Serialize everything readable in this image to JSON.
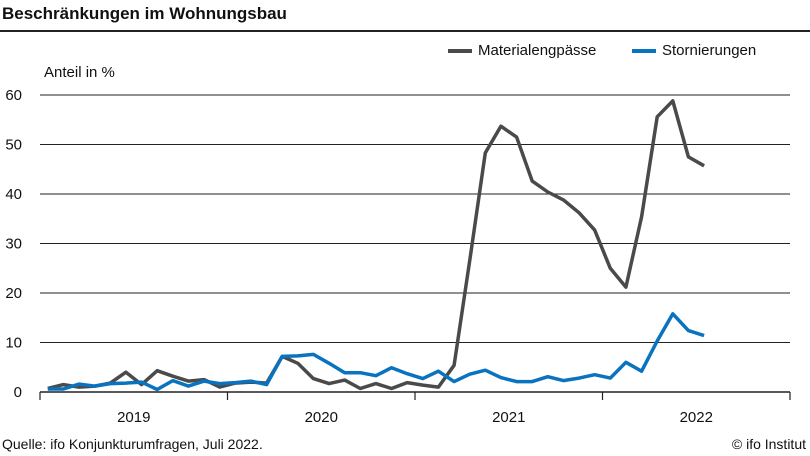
{
  "chart_data": {
    "type": "line",
    "title": "Beschränkungen im Wohnungsbau",
    "ylabel": "Anteil in %",
    "xlabel": "",
    "ylim": [
      0,
      60
    ],
    "yticks": [
      0,
      10,
      20,
      30,
      40,
      50,
      60
    ],
    "xticklabels": [
      "2019",
      "2020",
      "2021",
      "2022"
    ],
    "x_start": "2019-01",
    "x_end": "2022-07",
    "grid": true,
    "legend_position": "top-right",
    "series": [
      {
        "name": "Materialengpässe",
        "color": "#4a4a4a",
        "values": [
          0.7,
          1.5,
          1.0,
          1.2,
          1.8,
          4.0,
          1.5,
          4.3,
          3.2,
          2.2,
          2.5,
          1.0,
          1.8,
          2.0,
          1.8,
          7.2,
          5.8,
          2.7,
          1.7,
          2.4,
          0.7,
          1.7,
          0.7,
          1.9,
          1.4,
          1.0,
          5.4,
          26.5,
          48.3,
          53.7,
          51.5,
          42.6,
          40.4,
          38.8,
          36.2,
          32.7,
          25.0,
          21.2,
          35.4,
          55.6,
          58.8,
          47.5,
          45.7
        ]
      },
      {
        "name": "Stornierungen",
        "color": "#0a73c0",
        "values": [
          0.6,
          0.6,
          1.6,
          1.2,
          1.7,
          1.8,
          2.0,
          0.5,
          2.3,
          1.2,
          2.2,
          1.7,
          1.9,
          2.2,
          1.5,
          7.2,
          7.3,
          7.6,
          5.8,
          3.9,
          3.9,
          3.3,
          4.9,
          3.7,
          2.7,
          4.2,
          2.1,
          3.6,
          4.4,
          2.9,
          2.1,
          2.1,
          3.1,
          2.3,
          2.8,
          3.5,
          2.8,
          6.0,
          4.2,
          10.3,
          15.8,
          12.4,
          11.4
        ]
      }
    ]
  },
  "footer": {
    "source": "Quelle: ifo Konjunkturumfragen, Juli 2022.",
    "copyright": "© ifo Institut"
  }
}
